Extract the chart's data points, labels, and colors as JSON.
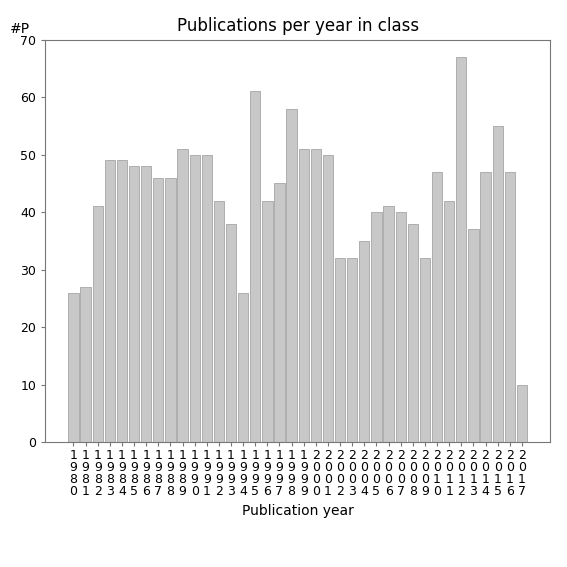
{
  "title": "Publications per year in class",
  "xlabel": "Publication year",
  "ylabel": "#P",
  "years": [
    1980,
    1981,
    1982,
    1983,
    1984,
    1985,
    1986,
    1987,
    1988,
    1989,
    1990,
    1991,
    1992,
    1993,
    1994,
    1995,
    1996,
    1997,
    1998,
    1999,
    2000,
    2001,
    2002,
    2003,
    2004,
    2005,
    2006,
    2007,
    2008,
    2009,
    2010,
    2011,
    2012,
    2013,
    2014,
    2015,
    2016,
    2017
  ],
  "values": [
    26,
    27,
    41,
    49,
    49,
    48,
    48,
    46,
    46,
    51,
    50,
    50,
    42,
    38,
    26,
    61,
    42,
    45,
    58,
    51,
    51,
    50,
    32,
    32,
    35,
    40,
    41,
    40,
    38,
    32,
    47,
    42,
    67,
    37,
    47,
    55,
    47,
    10
  ],
  "bar_color": "#c8c8c8",
  "bar_edge_color": "#999999",
  "ylim": [
    0,
    70
  ],
  "yticks": [
    0,
    10,
    20,
    30,
    40,
    50,
    60,
    70
  ],
  "background_color": "#ffffff",
  "title_fontsize": 12,
  "label_fontsize": 10,
  "tick_fontsize": 9
}
